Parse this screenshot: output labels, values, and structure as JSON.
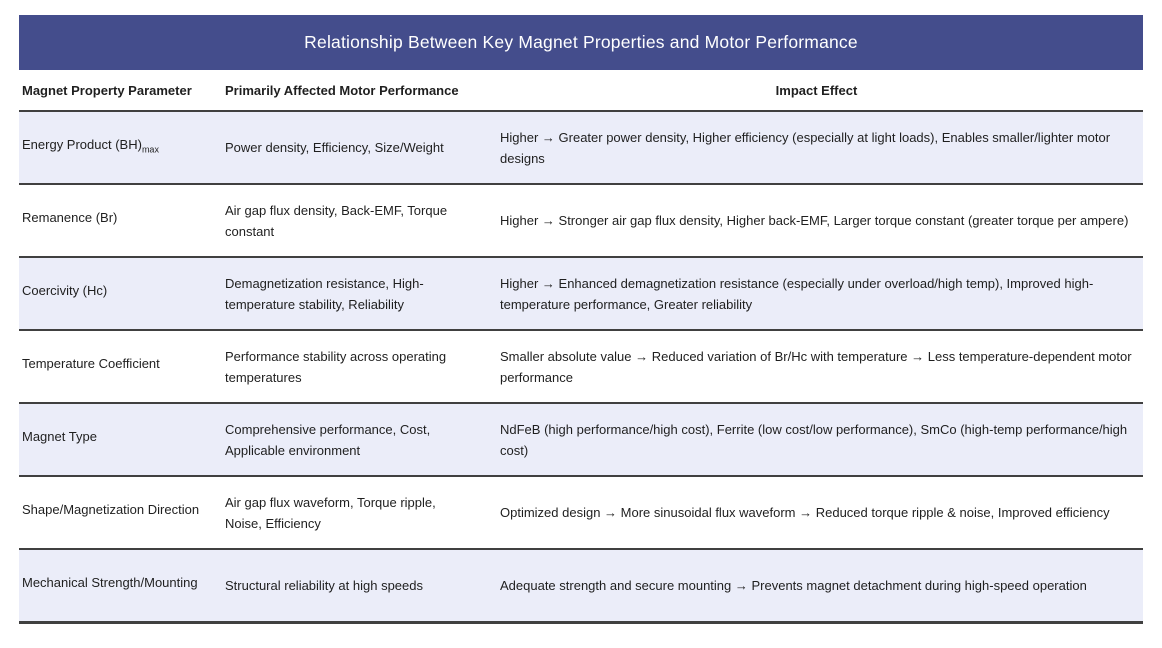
{
  "title": "Relationship Between Key Magnet Properties and Motor Performance",
  "colors": {
    "header_bg": "#444D8C",
    "row_alt_bg": "#EBEDF9",
    "divider": "#404040"
  },
  "table": {
    "columns": [
      "Magnet Property Parameter",
      "Primarily Affected Motor Performance",
      "Impact Effect"
    ],
    "rows": [
      {
        "param": "Energy Product (BH)",
        "param_sub": "max",
        "performance": "Power density, Efficiency, Size/Weight",
        "impact": "Higher → Greater power density, Higher efficiency (especially at light loads), Enables smaller/lighter motor designs"
      },
      {
        "param": "Remanence (Br)",
        "param_sub": "",
        "performance": "Air gap flux density, Back-EMF, Torque constant",
        "impact": "Higher → Stronger air gap flux density, Higher back-EMF, Larger torque constant (greater torque per ampere)"
      },
      {
        "param": "Coercivity (Hc)",
        "param_sub": "",
        "performance": "Demagnetization resistance, High-temperature stability, Reliability",
        "impact": "Higher → Enhanced demagnetization resistance (especially under overload/high temp), Improved high-temperature performance, Greater reliability"
      },
      {
        "param": "Temperature Coefficient",
        "param_sub": "",
        "performance": "Performance stability across operating temperatures",
        "impact": "Smaller absolute value → Reduced variation of Br/Hc with temperature → Less temperature-dependent motor performance"
      },
      {
        "param": "Magnet Type",
        "param_sub": "",
        "performance": "Comprehensive performance, Cost, Applicable environment",
        "impact": "NdFeB (high performance/high cost), Ferrite (low cost/low performance), SmCo (high-temp performance/high cost)"
      },
      {
        "param": "Shape/Magnetization Direction",
        "param_sub": "",
        "performance": "Air gap flux waveform, Torque ripple, Noise, Efficiency",
        "impact": "Optimized design → More sinusoidal flux waveform → Reduced torque ripple & noise, Improved efficiency"
      },
      {
        "param": "Mechanical Strength/Mounting",
        "param_sub": "",
        "performance": "Structural reliability at high speeds",
        "impact": "Adequate strength and secure mounting → Prevents magnet detachment during high-speed operation"
      }
    ]
  }
}
